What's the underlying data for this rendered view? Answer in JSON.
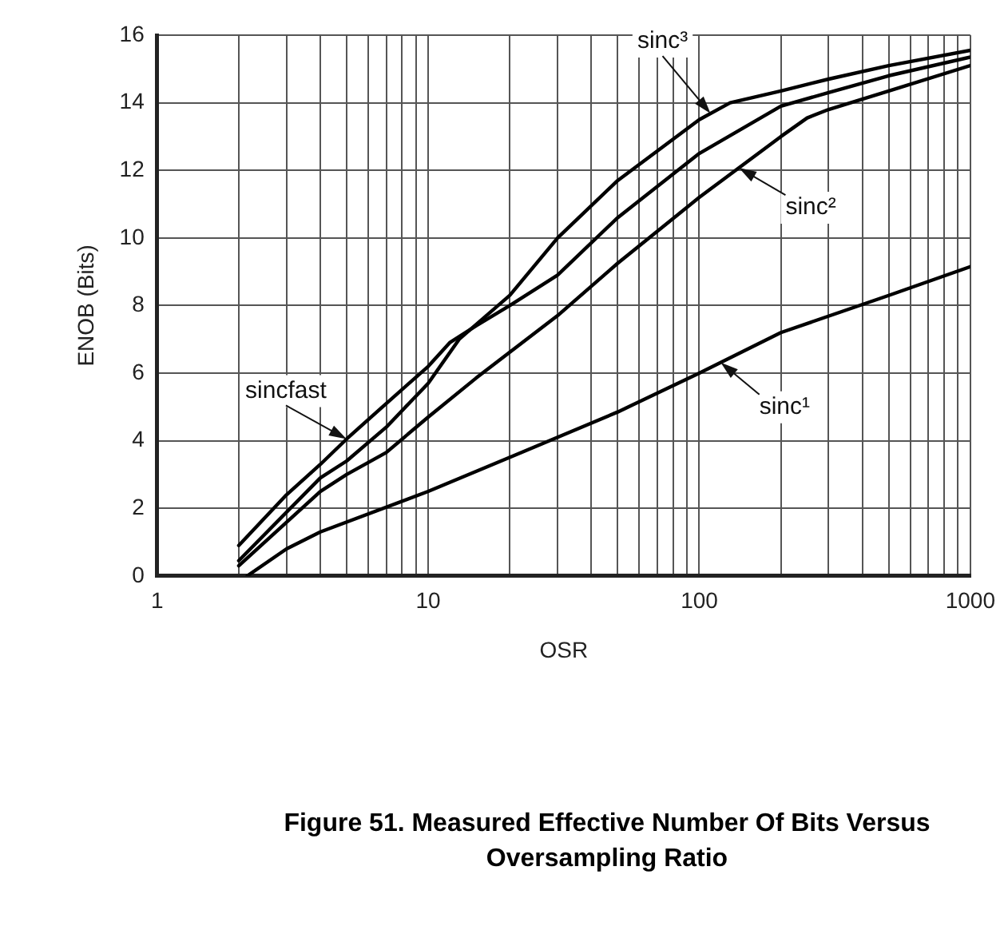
{
  "chart_data": {
    "type": "line",
    "xlabel": "OSR",
    "ylabel": "ENOB (Bits)",
    "log": "x",
    "grid": true,
    "legend": false,
    "marker": "none",
    "line_style": "solid",
    "xlim": [
      1,
      1000
    ],
    "ylim": [
      0,
      16
    ],
    "xticks": [
      1,
      {
        "value": 2,
        "label": null
      },
      {
        "value": 3,
        "label": null
      },
      {
        "value": 4,
        "label": null
      },
      {
        "value": 5,
        "label": null
      },
      {
        "value": 6,
        "label": null
      },
      {
        "value": 7,
        "label": null
      },
      {
        "value": 8,
        "label": null
      },
      {
        "value": 9,
        "label": null
      },
      10,
      {
        "value": 20,
        "label": null
      },
      {
        "value": 30,
        "label": null
      },
      {
        "value": 40,
        "label": null
      },
      {
        "value": 50,
        "label": null
      },
      {
        "value": 60,
        "label": null
      },
      {
        "value": 70,
        "label": null
      },
      {
        "value": 80,
        "label": null
      },
      {
        "value": 90,
        "label": null
      },
      100,
      {
        "value": 200,
        "label": null
      },
      {
        "value": 300,
        "label": null
      },
      {
        "value": 400,
        "label": null
      },
      {
        "value": 500,
        "label": null
      },
      {
        "value": 600,
        "label": null
      },
      {
        "value": 700,
        "label": null
      },
      {
        "value": 800,
        "label": null
      },
      {
        "value": 900,
        "label": null
      },
      1000
    ],
    "yticks": [
      0,
      2,
      4,
      6,
      8,
      10,
      12,
      14,
      16
    ],
    "series": [
      {
        "name": "sinc¹",
        "color": "#000000",
        "x": [
          2.15,
          3,
          4,
          10,
          22,
          50,
          100,
          200,
          500,
          1000
        ],
        "values": [
          0,
          0.8,
          1.3,
          2.5,
          3.65,
          4.85,
          6.0,
          7.2,
          8.3,
          9.15
        ]
      },
      {
        "name": "sinc²",
        "color": "#000000",
        "x": [
          2,
          4,
          5,
          7,
          10,
          15,
          30,
          50,
          100,
          200,
          250,
          300,
          500,
          1000
        ],
        "values": [
          0.3,
          2.5,
          3.0,
          3.65,
          4.7,
          5.85,
          7.7,
          9.25,
          11.2,
          13.0,
          13.55,
          13.8,
          14.35,
          15.1
        ]
      },
      {
        "name": "sinc³",
        "color": "#000000",
        "x": [
          2,
          4,
          5,
          7,
          10,
          13,
          20,
          30,
          50,
          100,
          130,
          200,
          300,
          500,
          1000
        ],
        "values": [
          0.45,
          2.9,
          3.4,
          4.4,
          5.7,
          7.0,
          8.3,
          10.0,
          11.7,
          13.5,
          14.0,
          14.35,
          14.7,
          15.1,
          15.55
        ]
      },
      {
        "name": "sincfast",
        "color": "#000000",
        "x": [
          2,
          3,
          4,
          5,
          7,
          10,
          12,
          15,
          20,
          30,
          50,
          100,
          200,
          300,
          500,
          1000
        ],
        "values": [
          0.9,
          2.4,
          3.3,
          4.05,
          5.1,
          6.2,
          6.9,
          7.4,
          8.0,
          8.9,
          10.6,
          12.5,
          13.9,
          14.3,
          14.8,
          15.35
        ]
      }
    ],
    "annotations": [
      "Figure 51. Measured Effective Number Of Bits Versus Oversampling Ratio"
    ]
  }
}
